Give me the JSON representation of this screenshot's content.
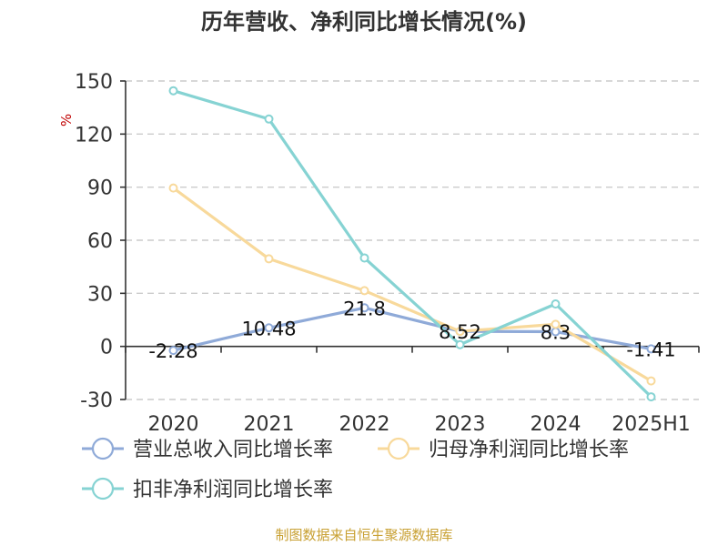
{
  "title": "历年营收、净利同比增长情况(%)",
  "source": "制图数据来自恒生聚源数据库",
  "chart_data": {
    "type": "line",
    "title": "历年营收、净利同比增长情况(%)",
    "ylabel": "%",
    "categories": [
      "2020",
      "2021",
      "2022",
      "2023",
      "2024",
      "2025H1"
    ],
    "yticks": [
      150,
      120,
      90,
      60,
      30,
      0,
      -30
    ],
    "ylim": [
      -30,
      150
    ],
    "grid": true,
    "legend_position": "bottom",
    "series": [
      {
        "name": "营业总收入同比增长率",
        "color": "#8faad8",
        "values": [
          -2.28,
          10.48,
          21.8,
          8.52,
          8.3,
          -1.41
        ],
        "labels": [
          "-2.28",
          "10.48",
          "21.8",
          "8.52",
          "8.3",
          "-1.41"
        ]
      },
      {
        "name": "归母净利润同比增长率",
        "color": "#f8d99b",
        "values": [
          89.5,
          49.5,
          31.5,
          8.5,
          12.5,
          -19.5
        ]
      },
      {
        "name": "扣非净利润同比增长率",
        "color": "#86d3d3",
        "values": [
          144.5,
          128.5,
          50.0,
          1.0,
          24.0,
          -28.5
        ]
      }
    ]
  }
}
